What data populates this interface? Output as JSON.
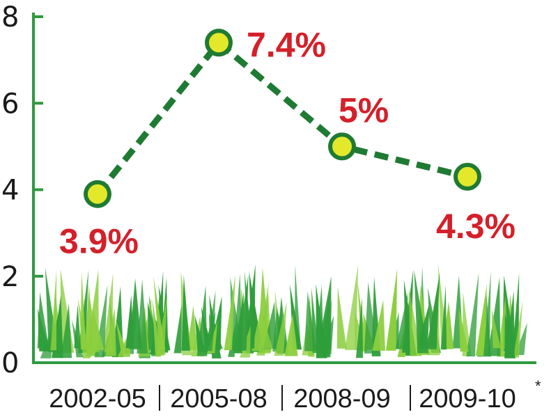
{
  "chart_data": {
    "type": "line",
    "categories": [
      "2002-05",
      "2005-08",
      "2008-09",
      "2009-10"
    ],
    "values": [
      3.9,
      7.4,
      5,
      4.3
    ],
    "data_labels": [
      "3.9%",
      "7.4%",
      "5%",
      "4.3%"
    ],
    "footnote_mark": "*",
    "title": "",
    "xlabel": "",
    "ylabel": "",
    "ylim": [
      0,
      8
    ],
    "yticks": [
      0,
      2,
      4,
      6,
      8
    ],
    "grid": false,
    "colors": {
      "axis": "#2e9a3f",
      "line": "#1f7a33",
      "marker_fill": "#e3e82a",
      "marker_stroke": "#1f7a33",
      "label": "#d4202a",
      "grass_light": "#8ccf3e",
      "grass_dark": "#2f9e3a"
    }
  }
}
